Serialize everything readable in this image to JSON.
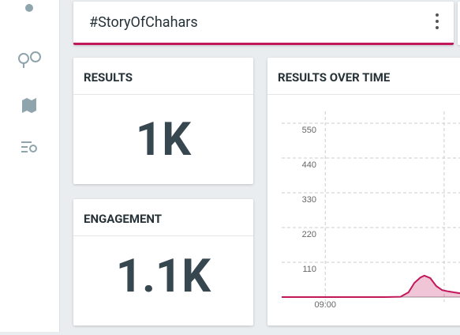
{
  "search": {
    "title": "#StoryOfChahars"
  },
  "results": {
    "label": "RESULTS",
    "value": "1K"
  },
  "engagement": {
    "label": "ENGAGEMENT",
    "value": "1.1K"
  },
  "results_over_time": {
    "chart_data": {
      "type": "area",
      "title": "RESULTS OVER TIME",
      "color": "#c2185b",
      "x": [
        -22,
        -10,
        0,
        10,
        20,
        30,
        38,
        42,
        45,
        48,
        50,
        53,
        56,
        59,
        62,
        65,
        68
      ],
      "values": [
        0,
        0,
        0,
        0,
        0,
        0,
        1,
        15,
        45,
        62,
        68,
        60,
        35,
        22,
        18,
        15,
        12
      ],
      "xlim": [
        -22,
        68
      ],
      "xticks": [
        {
          "value": 0,
          "label": "09:00"
        },
        {
          "value": 60,
          "label": null
        }
      ],
      "ylim": [
        0,
        620
      ],
      "yticks": [
        110,
        220,
        330,
        440,
        550
      ],
      "grid": true
    }
  }
}
